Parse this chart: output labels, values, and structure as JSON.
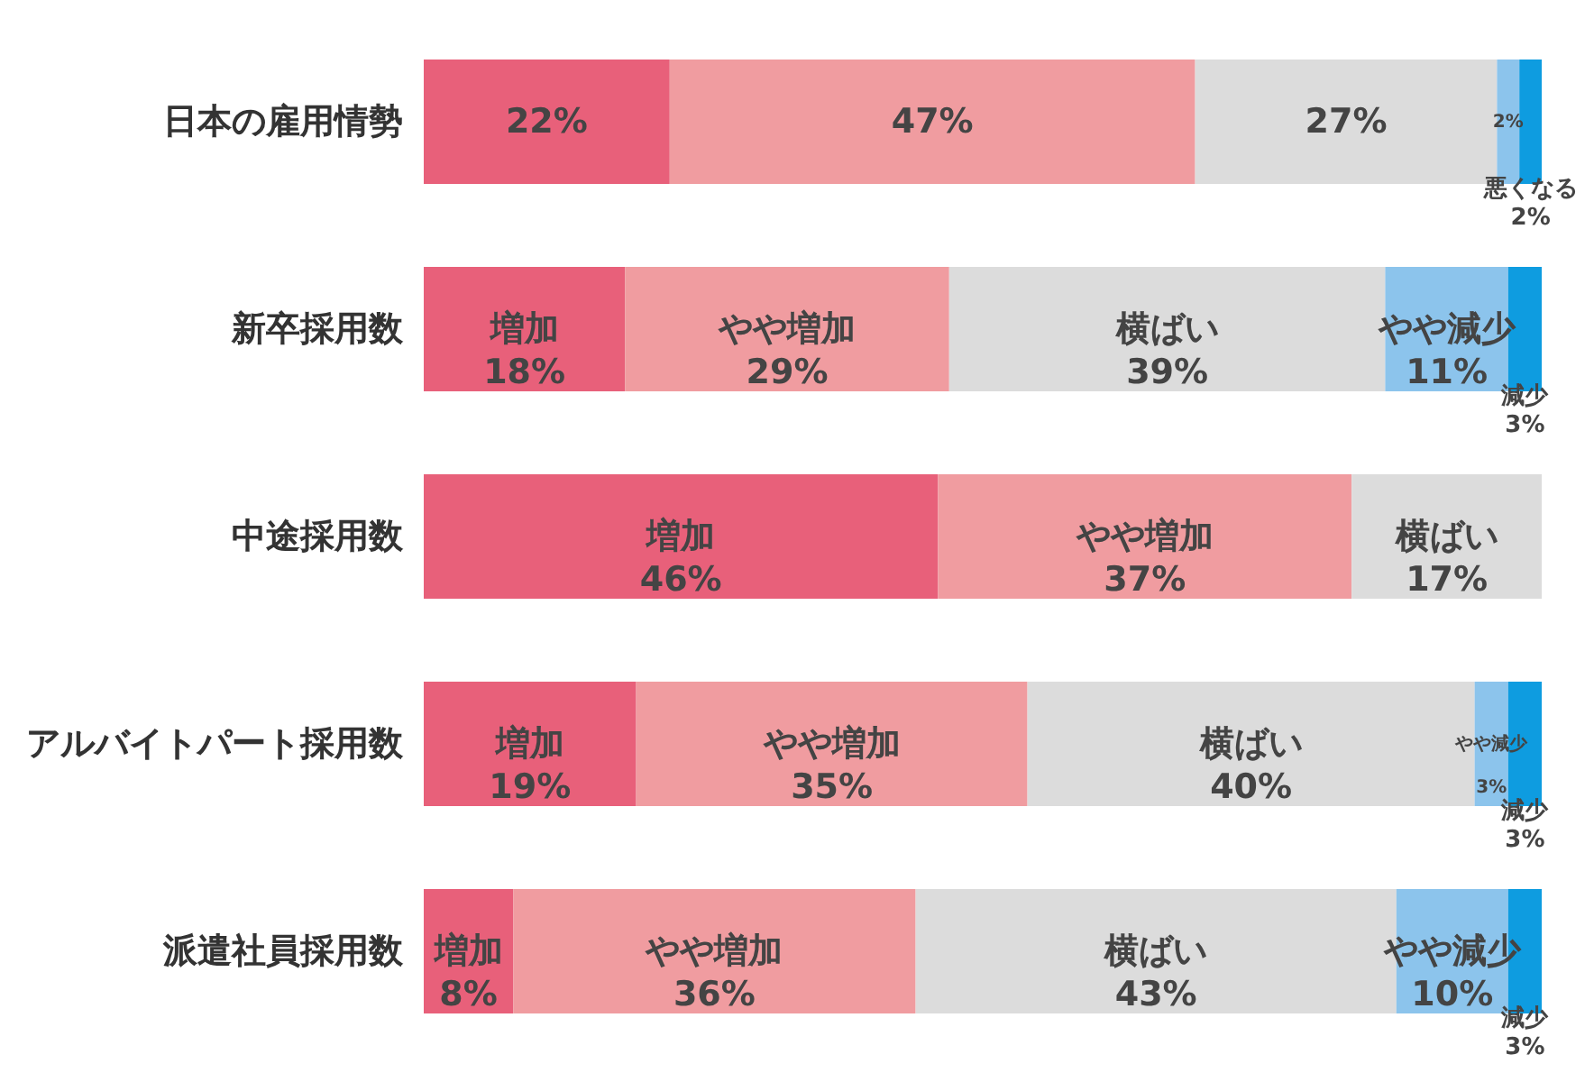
{
  "chart_data": {
    "type": "bar",
    "orientation": "horizontal",
    "stacked": true,
    "tick_labels": "y",
    "xlim": [
      0,
      100
    ],
    "categories": [
      "日本の雇用情勢",
      "新卒採用数",
      "中途採用数",
      "アルバイトパート採用数",
      "派遣社員採用数"
    ],
    "series": [
      {
        "color": "#e8607a",
        "values": [
          22,
          18,
          46,
          19,
          8
        ],
        "value_labels": [
          "22%",
          "増加\n18%",
          "増加\n46%",
          "増加\n19%",
          "増加\n8%"
        ]
      },
      {
        "color": "#f09ca0",
        "values": [
          47,
          29,
          37,
          35,
          36
        ],
        "value_labels": [
          "47%",
          "やや増加\n29%",
          "やや増加\n37%",
          "やや増加\n35%",
          "やや増加\n36%"
        ]
      },
      {
        "color": "#dcdcdc",
        "values": [
          27,
          39,
          17,
          40,
          43
        ],
        "value_labels": [
          "27%",
          "横ばい\n39%",
          "横ばい\n17%",
          "横ばい\n40%",
          "横ばい\n43%"
        ]
      },
      {
        "color": "#8cc4ec",
        "values": [
          2,
          11,
          null,
          3,
          10
        ],
        "value_labels": [
          "2%",
          "やや減少\n11%",
          null,
          "やや減少\n3%",
          "やや減少\n10%"
        ]
      },
      {
        "color": "#0e9ce0",
        "values": [
          2,
          3,
          null,
          3,
          3
        ],
        "value_labels": [
          "悪くなる\n2%",
          "減少\n3%",
          null,
          "減少\n3%",
          "減少\n3%"
        ]
      }
    ]
  }
}
